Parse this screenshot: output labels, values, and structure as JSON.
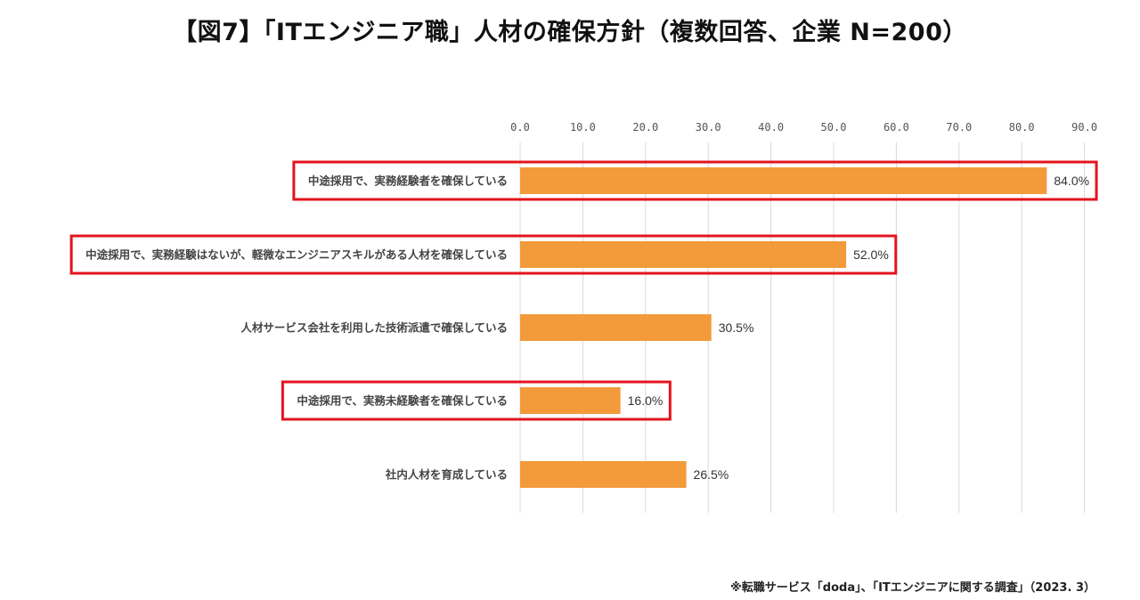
{
  "title": "【図7】「ITエンジニア職」人材の確保方針（複数回答、企業 N=200）",
  "source": "※転職サービス「doda」、「ITエンジニアに関する調査」（2023. 3）",
  "colors": {
    "bar": "#F39A3B",
    "highlight": "#E3141E",
    "grid": "#D9D9D9"
  },
  "chart_data": {
    "type": "bar",
    "orientation": "horizontal",
    "categories": [
      "中途採用で、実務経験者を確保している",
      "中途採用で、実務経験はないが、軽微なエンジニアスキルがある人材を確保している",
      "人材サービス会社を利用した技術派遣で確保している",
      "中途採用で、実務未経験者を確保している",
      "社内人材を育成している"
    ],
    "values": [
      84.0,
      52.0,
      30.5,
      16.0,
      26.5
    ],
    "value_labels": [
      "84.0%",
      "52.0%",
      "30.5%",
      "16.0%",
      "26.5%"
    ],
    "highlighted": [
      true,
      true,
      false,
      true,
      false
    ],
    "xlim": [
      0,
      90
    ],
    "x_ticks": [
      "0.0",
      "10.0",
      "20.0",
      "30.0",
      "40.0",
      "50.0",
      "60.0",
      "70.0",
      "80.0",
      "90.0"
    ],
    "axis_position": "top",
    "grid": true
  }
}
